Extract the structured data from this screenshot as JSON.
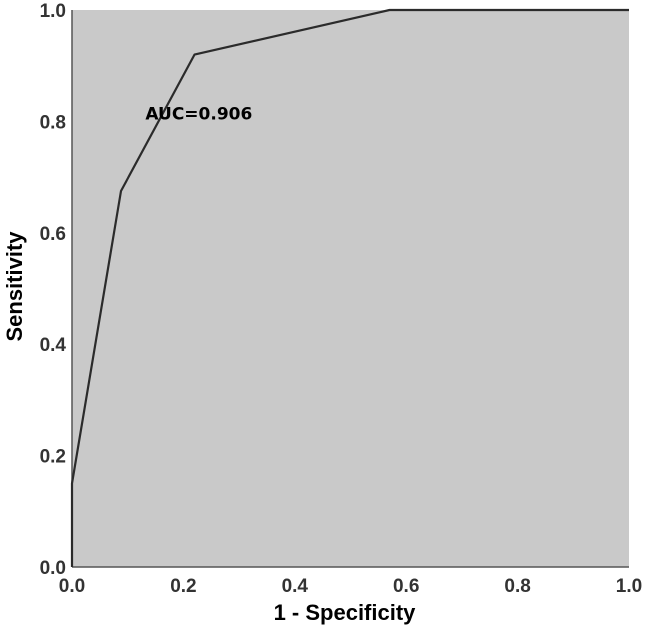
{
  "chart_data": {
    "type": "line",
    "title": "",
    "xlabel": "1 - Specificity",
    "ylabel": "Sensitivity",
    "xlim": [
      0.0,
      1.0
    ],
    "ylim": [
      0.0,
      1.0
    ],
    "xticks": [
      "0.0",
      "0.2",
      "0.4",
      "0.6",
      "0.8",
      "1.0"
    ],
    "yticks": [
      "0.0",
      "0.2",
      "0.4",
      "0.6",
      "0.8",
      "1.0"
    ],
    "grid": false,
    "legend": "none",
    "series": [
      {
        "x": [
          0.0,
          0.0,
          0.088,
          0.22,
          0.57,
          1.0
        ],
        "y": [
          0.0,
          0.15,
          0.675,
          0.92,
          1.0,
          1.0
        ]
      }
    ],
    "annotations": [
      {
        "text": "AUC=0.906",
        "x": 0.2,
        "y": 0.8
      }
    ],
    "colors": {
      "plot_background": "#c9c9c9",
      "line": "#2b2b2b",
      "axis": "#555555"
    }
  }
}
